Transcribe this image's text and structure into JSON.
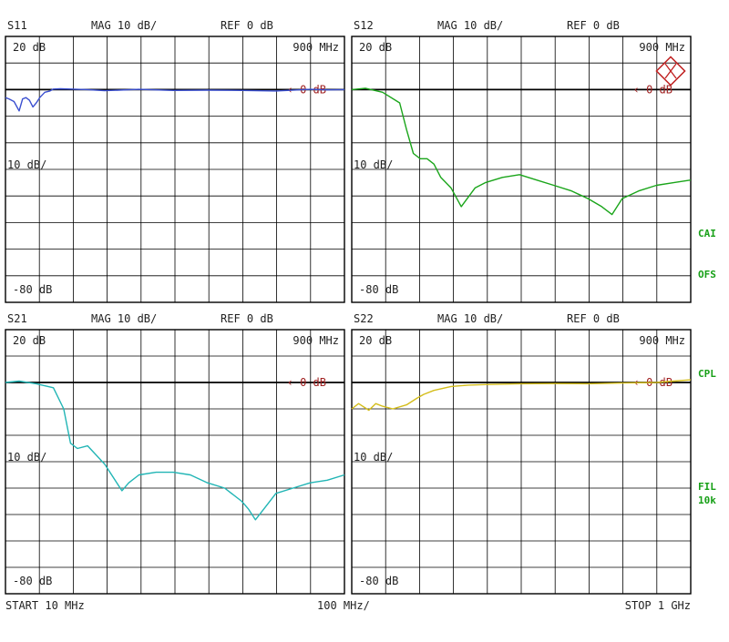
{
  "colors": {
    "s11": "#3a4fd0",
    "s12": "#1aa51a",
    "s21": "#21b5b5",
    "s22": "#d4bd1a",
    "ref_marker": "#a02020",
    "side_labels": "#17a017"
  },
  "panels": [
    {
      "id": "s11",
      "name": "S11",
      "mag": "MAG 10 dB/",
      "ref": "REF 0 dB",
      "top": "20 dB",
      "mid": "10 dB/",
      "bot": "-80 dB",
      "freq": "900 MHz",
      "ref_label": "0 dB"
    },
    {
      "id": "s12",
      "name": "S12",
      "mag": "MAG 10 dB/",
      "ref": "REF 0 dB",
      "top": "20 dB",
      "mid": "10 dB/",
      "bot": "-80 dB",
      "freq": "900 MHz",
      "ref_label": "0 dB"
    },
    {
      "id": "s21",
      "name": "S21",
      "mag": "MAG 10 dB/",
      "ref": "REF 0 dB",
      "top": "20 dB",
      "mid": "10 dB/",
      "bot": "-80 dB",
      "freq": "900 MHz",
      "ref_label": "0 dB"
    },
    {
      "id": "s22",
      "name": "S22",
      "mag": "MAG 10 dB/",
      "ref": "REF 0 dB",
      "top": "20 dB",
      "mid": "10 dB/",
      "bot": "-80 dB",
      "freq": "900 MHz",
      "ref_label": "0 dB"
    }
  ],
  "side_labels": {
    "cai": "CAI",
    "ofs": "OFS",
    "cpl": "CPL",
    "fil": "FIL",
    "res": "10k"
  },
  "footer": {
    "start": "START  10 MHz",
    "span": "100 MHz/",
    "stop": "STOP 1 GHz"
  },
  "chart_data": [
    {
      "type": "line",
      "title": "S11",
      "xlabel": "",
      "ylabel": "",
      "xlim": [
        10,
        1000
      ],
      "ylim": [
        -80,
        20
      ],
      "series": [
        {
          "x": [
            10,
            20,
            35,
            50,
            60,
            70,
            80,
            90,
            100,
            110,
            125,
            140,
            150,
            170,
            200,
            250,
            300,
            400,
            500,
            600,
            700,
            800,
            900,
            950,
            1000
          ],
          "values": [
            -3,
            -3.5,
            -4.5,
            -8,
            -3.5,
            -3,
            -4,
            -6.5,
            -5,
            -3,
            -1,
            -0.5,
            0.2,
            0.3,
            0.2,
            0,
            -0.4,
            0.1,
            -0.3,
            -0.2,
            -0.3,
            -0.5,
            0.1,
            -0.1,
            0
          ]
        }
      ]
    },
    {
      "type": "line",
      "title": "S12",
      "xlabel": "",
      "ylabel": "",
      "xlim": [
        10,
        1000
      ],
      "ylim": [
        -80,
        20
      ],
      "series": [
        {
          "x": [
            10,
            50,
            100,
            150,
            170,
            190,
            210,
            230,
            250,
            270,
            300,
            330,
            370,
            400,
            450,
            500,
            550,
            600,
            650,
            700,
            740,
            770,
            800,
            850,
            900,
            950,
            1000
          ],
          "values": [
            0,
            0.5,
            -1,
            -5,
            -15,
            -24,
            -26,
            -26,
            -28,
            -33,
            -37,
            -44,
            -37,
            -35,
            -33,
            -32,
            -34,
            -36,
            -38,
            -41,
            -44,
            -47,
            -41,
            -38,
            -36,
            -35,
            -34
          ]
        }
      ]
    },
    {
      "type": "line",
      "title": "S21",
      "xlabel": "",
      "ylabel": "",
      "xlim": [
        10,
        1000
      ],
      "ylim": [
        -80,
        20
      ],
      "series": [
        {
          "x": [
            10,
            50,
            100,
            150,
            180,
            200,
            220,
            250,
            300,
            350,
            370,
            400,
            450,
            500,
            550,
            600,
            650,
            700,
            720,
            740,
            770,
            800,
            850,
            900,
            950,
            1000
          ],
          "values": [
            0,
            0.5,
            -0.5,
            -2,
            -10,
            -23,
            -25,
            -24,
            -31,
            -41,
            -38,
            -35,
            -34,
            -34,
            -35,
            -38,
            -40,
            -45,
            -48,
            -52,
            -47,
            -42,
            -40,
            -38,
            -37,
            -35
          ]
        }
      ]
    },
    {
      "type": "line",
      "title": "S22",
      "xlabel": "",
      "ylabel": "",
      "xlim": [
        10,
        1000
      ],
      "ylim": [
        -80,
        20
      ],
      "series": [
        {
          "x": [
            10,
            30,
            60,
            80,
            100,
            130,
            170,
            200,
            220,
            250,
            300,
            350,
            400,
            500,
            600,
            700,
            800,
            900,
            950,
            1000
          ],
          "values": [
            -10,
            -8,
            -10.5,
            -8,
            -9,
            -10,
            -8.5,
            -6,
            -4.5,
            -3,
            -1.5,
            -1,
            -0.8,
            -0.5,
            -0.4,
            -0.5,
            -0.2,
            0,
            0.5,
            1
          ]
        }
      ]
    }
  ]
}
